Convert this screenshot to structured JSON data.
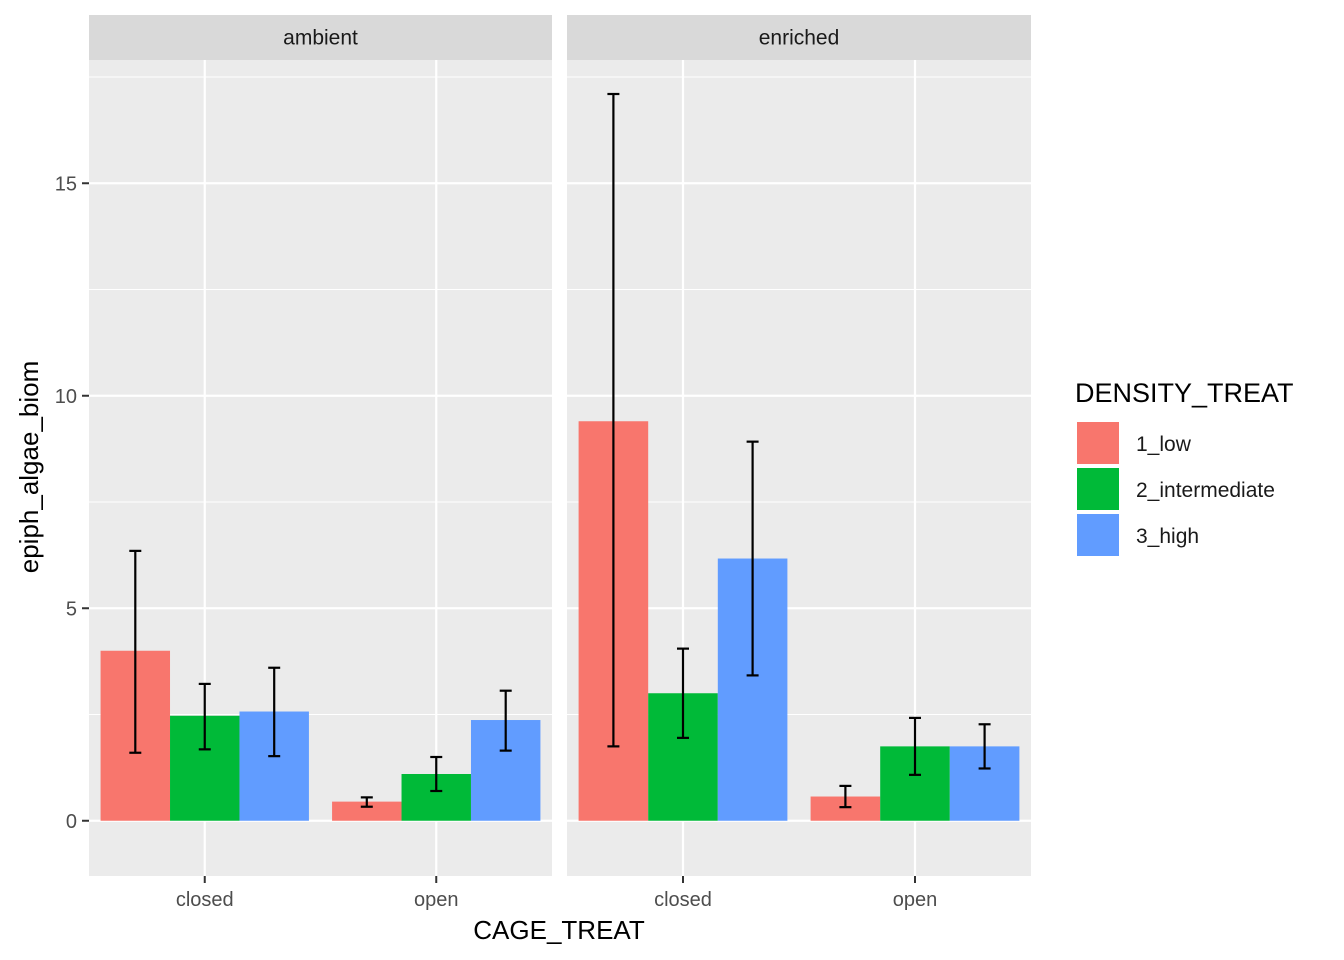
{
  "chart_data": {
    "type": "bar",
    "xlabel": "CAGE_TREAT",
    "ylabel": "epiph_algae_biom",
    "ylim": [
      -1.3,
      17.9
    ],
    "yticks": [
      0,
      5,
      10,
      15
    ],
    "grid": true,
    "facets": [
      "ambient",
      "enriched"
    ],
    "categories": [
      "closed",
      "open"
    ],
    "legend": {
      "title": "DENSITY_TREAT",
      "position": "right",
      "entries": [
        "1_low",
        "2_intermediate",
        "3_high"
      ]
    },
    "colors": [
      "#F8766D",
      "#00BA38",
      "#619CFF"
    ],
    "series": [
      {
        "name": "1_low",
        "panels": [
          {
            "facet": "ambient",
            "values": [
              4.0,
              0.45
            ],
            "error_low": [
              1.6,
              0.33
            ],
            "error_high": [
              6.35,
              0.55
            ]
          },
          {
            "facet": "enriched",
            "values": [
              9.4,
              0.57
            ],
            "error_low": [
              1.75,
              0.32
            ],
            "error_high": [
              17.1,
              0.82
            ]
          }
        ]
      },
      {
        "name": "2_intermediate",
        "panels": [
          {
            "facet": "ambient",
            "values": [
              2.47,
              1.1
            ],
            "error_low": [
              1.68,
              0.7
            ],
            "error_high": [
              3.22,
              1.5
            ]
          },
          {
            "facet": "enriched",
            "values": [
              3.0,
              1.75
            ],
            "error_low": [
              1.95,
              1.08
            ],
            "error_high": [
              4.05,
              2.42
            ]
          }
        ]
      },
      {
        "name": "3_high",
        "panels": [
          {
            "facet": "ambient",
            "values": [
              2.57,
              2.37
            ],
            "error_low": [
              1.52,
              1.65
            ],
            "error_high": [
              3.6,
              3.06
            ]
          },
          {
            "facet": "enriched",
            "values": [
              6.17,
              1.75
            ],
            "error_low": [
              3.42,
              1.23
            ],
            "error_high": [
              8.92,
              2.27
            ]
          }
        ]
      }
    ]
  }
}
